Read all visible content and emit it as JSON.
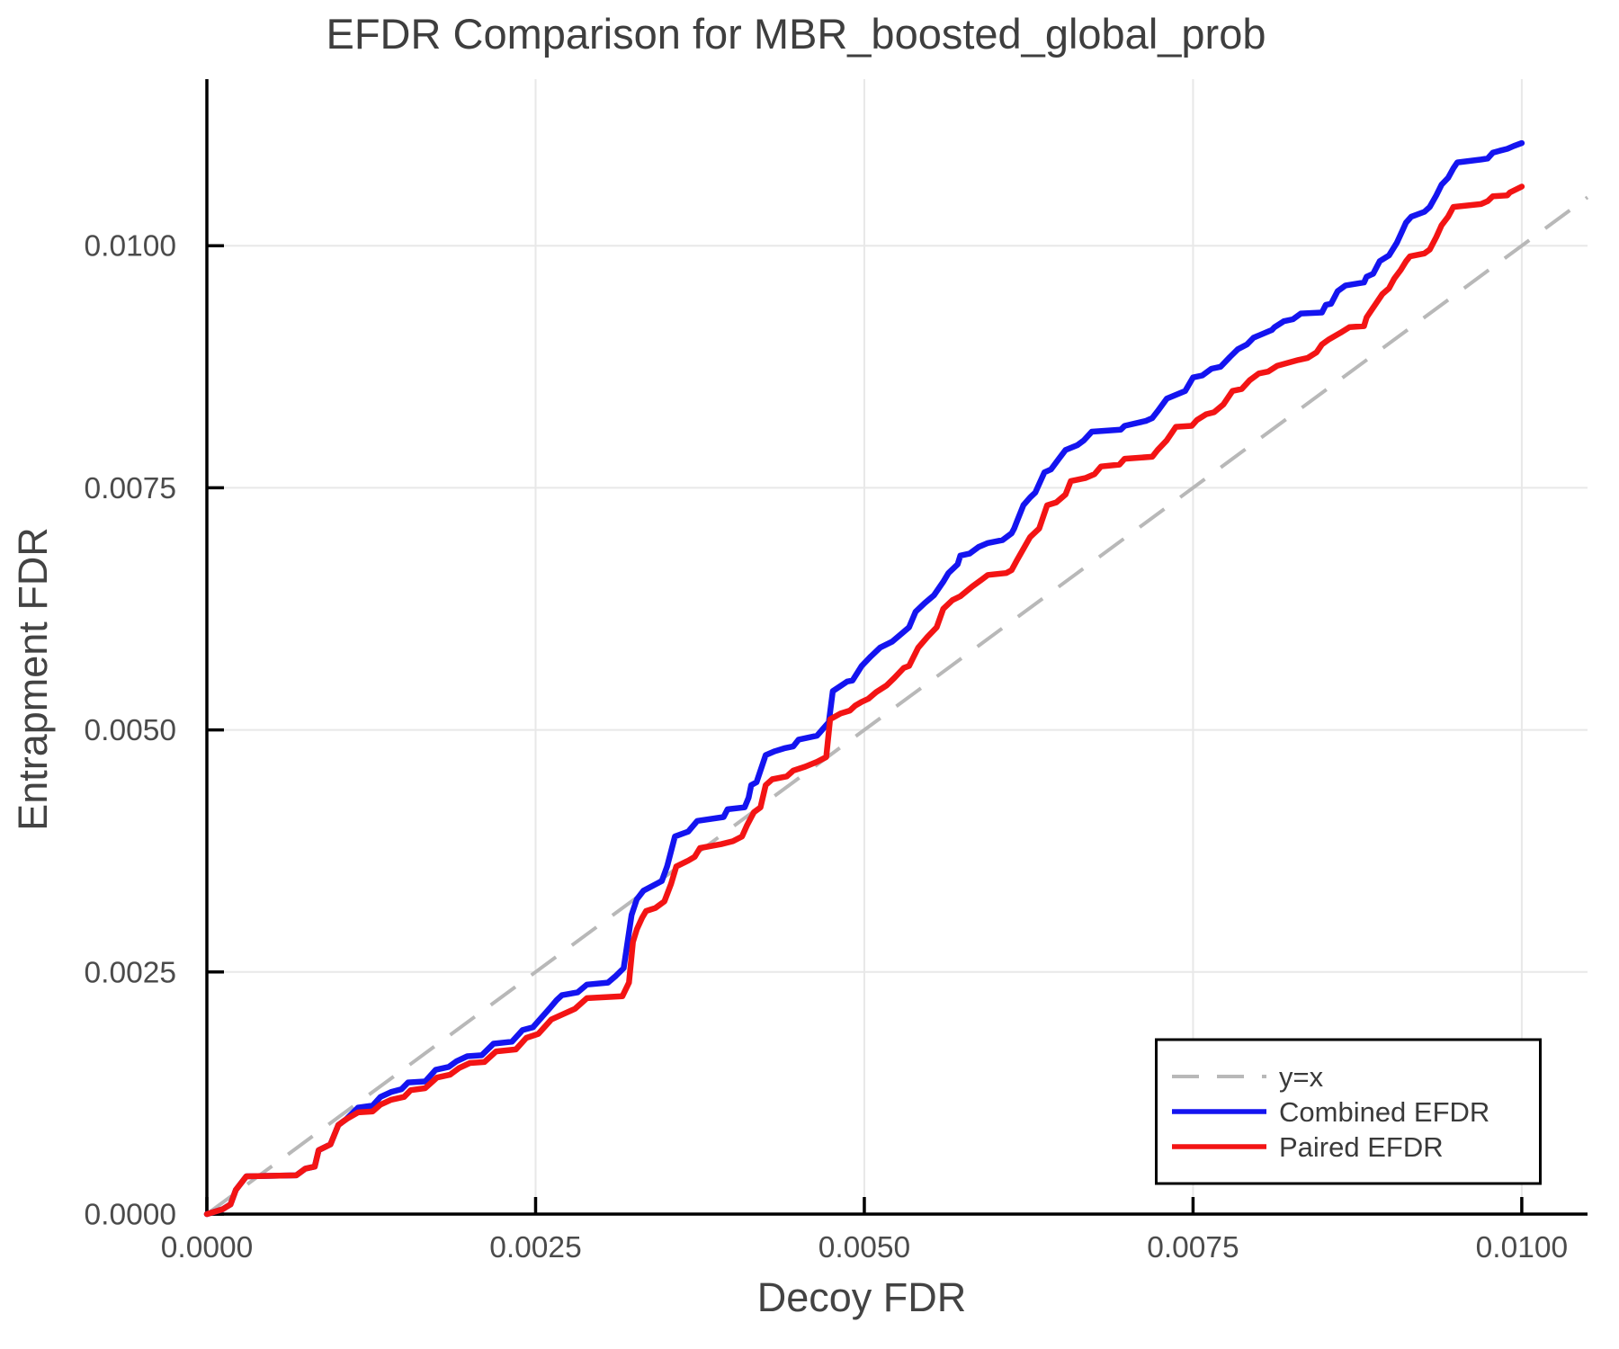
{
  "title": "EFDR Comparison for MBR_boosted_global_prob",
  "colors": {
    "combined": "#1414f0",
    "paired": "#f31414",
    "reference": "#b8b8b8",
    "grid": "#e8e8e8",
    "spine": "#000000",
    "title_text": "#3e3e3e",
    "tick_text": "#4b4b4b"
  },
  "chart_data": {
    "type": "line",
    "title": "EFDR Comparison for MBR_boosted_global_prob",
    "xlabel": "Decoy FDR",
    "ylabel": "Entrapment FDR",
    "xlim": [
      0,
      0.0105
    ],
    "ylim": [
      0,
      0.01172
    ],
    "grid": true,
    "x_ticks": {
      "values": [
        0,
        0.0025,
        0.005,
        0.0075,
        0.01
      ],
      "labels": [
        "0.0000",
        "0.0025",
        "0.0050",
        "0.0075",
        "0.0100"
      ]
    },
    "y_ticks": {
      "values": [
        0,
        0.0025,
        0.005,
        0.0075,
        0.01
      ],
      "labels": [
        "0.0000",
        "0.0025",
        "0.0050",
        "0.0075",
        "0.0100"
      ]
    },
    "reference_line": {
      "label": "y=x",
      "from": [
        0,
        0
      ],
      "to": [
        0.0105,
        0.0105
      ],
      "color": "#b8b8b8",
      "style": "dashed"
    },
    "legend": {
      "position": "lower-right",
      "entries": [
        {
          "label": "y=x",
          "color": "#b8b8b8",
          "style": "dashed"
        },
        {
          "label": "Combined EFDR",
          "color": "#1414f0",
          "style": "solid"
        },
        {
          "label": "Paired EFDR",
          "color": "#f31414",
          "style": "solid"
        }
      ]
    },
    "series": [
      {
        "name": "Combined EFDR",
        "color": "#1414f0",
        "points": [
          [
            0.0,
            0.0
          ],
          [
            0.00012,
            5e-05
          ],
          [
            0.00018,
            0.0001
          ],
          [
            0.00022,
            0.00025
          ],
          [
            0.0003,
            0.00039
          ],
          [
            0.00068,
            0.0004
          ],
          [
            0.00075,
            0.00047
          ],
          [
            0.00082,
            0.00049
          ],
          [
            0.00085,
            0.00066
          ],
          [
            0.00094,
            0.00072
          ],
          [
            0.001,
            0.00092
          ],
          [
            0.00106,
            0.00098
          ],
          [
            0.00115,
            0.0011
          ],
          [
            0.00126,
            0.00112
          ],
          [
            0.00132,
            0.00121
          ],
          [
            0.0014,
            0.00126
          ],
          [
            0.00148,
            0.00129
          ],
          [
            0.00153,
            0.00136
          ],
          [
            0.00166,
            0.00137
          ],
          [
            0.00174,
            0.00149
          ],
          [
            0.00184,
            0.00152
          ],
          [
            0.0019,
            0.00158
          ],
          [
            0.00198,
            0.00163
          ],
          [
            0.00209,
            0.00164
          ],
          [
            0.00218,
            0.00176
          ],
          [
            0.00232,
            0.00178
          ],
          [
            0.0024,
            0.0019
          ],
          [
            0.00248,
            0.00193
          ],
          [
            0.00261,
            0.00213
          ],
          [
            0.00266,
            0.00221
          ],
          [
            0.0027,
            0.00226
          ],
          [
            0.00282,
            0.00229
          ],
          [
            0.00289,
            0.00237
          ],
          [
            0.00305,
            0.00239
          ],
          [
            0.00311,
            0.00246
          ],
          [
            0.00317,
            0.00254
          ],
          [
            0.00323,
            0.00309
          ],
          [
            0.00327,
            0.00325
          ],
          [
            0.00332,
            0.00334
          ],
          [
            0.00339,
            0.00339
          ],
          [
            0.00346,
            0.00344
          ],
          [
            0.0035,
            0.00359
          ],
          [
            0.00356,
            0.0039
          ],
          [
            0.00366,
            0.00395
          ],
          [
            0.00373,
            0.00406
          ],
          [
            0.00393,
            0.0041
          ],
          [
            0.00396,
            0.00418
          ],
          [
            0.00409,
            0.0042
          ],
          [
            0.00412,
            0.0043
          ],
          [
            0.00414,
            0.00443
          ],
          [
            0.00418,
            0.00446
          ],
          [
            0.00425,
            0.00474
          ],
          [
            0.00432,
            0.00478
          ],
          [
            0.00439,
            0.00481
          ],
          [
            0.00446,
            0.00483
          ],
          [
            0.0045,
            0.0049
          ],
          [
            0.00464,
            0.00494
          ],
          [
            0.00466,
            0.00497
          ],
          [
            0.00473,
            0.00508
          ],
          [
            0.00476,
            0.0054
          ],
          [
            0.00487,
            0.0055
          ],
          [
            0.00491,
            0.00551
          ],
          [
            0.00498,
            0.00566
          ],
          [
            0.00505,
            0.00576
          ],
          [
            0.00512,
            0.00585
          ],
          [
            0.00521,
            0.00591
          ],
          [
            0.00528,
            0.00599
          ],
          [
            0.00534,
            0.00606
          ],
          [
            0.00539,
            0.00622
          ],
          [
            0.00546,
            0.00631
          ],
          [
            0.00553,
            0.00639
          ],
          [
            0.0056,
            0.00653
          ],
          [
            0.00564,
            0.00662
          ],
          [
            0.00571,
            0.00671
          ],
          [
            0.00573,
            0.0068
          ],
          [
            0.0058,
            0.00682
          ],
          [
            0.00587,
            0.00689
          ],
          [
            0.00594,
            0.00693
          ],
          [
            0.00605,
            0.00696
          ],
          [
            0.00612,
            0.00703
          ],
          [
            0.00614,
            0.00708
          ],
          [
            0.00616,
            0.00715
          ],
          [
            0.00621,
            0.00732
          ],
          [
            0.00626,
            0.0074
          ],
          [
            0.0063,
            0.00745
          ],
          [
            0.00637,
            0.00766
          ],
          [
            0.00642,
            0.00769
          ],
          [
            0.00648,
            0.0078
          ],
          [
            0.00653,
            0.00789
          ],
          [
            0.00662,
            0.00794
          ],
          [
            0.00667,
            0.00799
          ],
          [
            0.00673,
            0.00808
          ],
          [
            0.00695,
            0.0081
          ],
          [
            0.00698,
            0.00814
          ],
          [
            0.00714,
            0.00819
          ],
          [
            0.00719,
            0.00822
          ],
          [
            0.00723,
            0.00829
          ],
          [
            0.0073,
            0.00842
          ],
          [
            0.00744,
            0.0085
          ],
          [
            0.0075,
            0.00864
          ],
          [
            0.00757,
            0.00866
          ],
          [
            0.00764,
            0.00873
          ],
          [
            0.00771,
            0.00875
          ],
          [
            0.00778,
            0.00885
          ],
          [
            0.00784,
            0.00893
          ],
          [
            0.00791,
            0.00898
          ],
          [
            0.00796,
            0.00905
          ],
          [
            0.0081,
            0.00913
          ],
          [
            0.00812,
            0.00916
          ],
          [
            0.00819,
            0.00922
          ],
          [
            0.00826,
            0.00924
          ],
          [
            0.00832,
            0.0093
          ],
          [
            0.00848,
            0.00931
          ],
          [
            0.00851,
            0.00939
          ],
          [
            0.00855,
            0.0094
          ],
          [
            0.0086,
            0.00953
          ],
          [
            0.00866,
            0.00959
          ],
          [
            0.0088,
            0.00962
          ],
          [
            0.00882,
            0.00968
          ],
          [
            0.00887,
            0.00971
          ],
          [
            0.00892,
            0.00984
          ],
          [
            0.00899,
            0.0099
          ],
          [
            0.00905,
            0.01003
          ],
          [
            0.00909,
            0.01015
          ],
          [
            0.00912,
            0.01024
          ],
          [
            0.00916,
            0.0103
          ],
          [
            0.00926,
            0.01035
          ],
          [
            0.0093,
            0.0104
          ],
          [
            0.00935,
            0.01052
          ],
          [
            0.00939,
            0.01063
          ],
          [
            0.00944,
            0.0107
          ],
          [
            0.00948,
            0.0108
          ],
          [
            0.00951,
            0.01086
          ],
          [
            0.00969,
            0.01089
          ],
          [
            0.00974,
            0.0109
          ],
          [
            0.00978,
            0.01096
          ],
          [
            0.00983,
            0.01098
          ],
          [
            0.00989,
            0.011
          ],
          [
            0.00994,
            0.01103
          ],
          [
            0.01,
            0.01106
          ]
        ]
      },
      {
        "name": "Paired EFDR",
        "color": "#f31414",
        "points": [
          [
            0.0,
            0.0
          ],
          [
            0.00012,
            5e-05
          ],
          [
            0.00018,
            0.0001
          ],
          [
            0.00022,
            0.00025
          ],
          [
            0.0003,
            0.00039
          ],
          [
            0.00068,
            0.0004
          ],
          [
            0.00075,
            0.00047
          ],
          [
            0.00082,
            0.00049
          ],
          [
            0.00085,
            0.00066
          ],
          [
            0.00094,
            0.00072
          ],
          [
            0.001,
            0.00092
          ],
          [
            0.00106,
            0.00098
          ],
          [
            0.00115,
            0.00105
          ],
          [
            0.00126,
            0.00106
          ],
          [
            0.00132,
            0.00113
          ],
          [
            0.0014,
            0.00118
          ],
          [
            0.0015,
            0.00121
          ],
          [
            0.00155,
            0.00128
          ],
          [
            0.00166,
            0.0013
          ],
          [
            0.00175,
            0.00141
          ],
          [
            0.00185,
            0.00144
          ],
          [
            0.00192,
            0.00151
          ],
          [
            0.002,
            0.00156
          ],
          [
            0.00211,
            0.00157
          ],
          [
            0.0022,
            0.00168
          ],
          [
            0.00235,
            0.0017
          ],
          [
            0.00243,
            0.00182
          ],
          [
            0.00252,
            0.00186
          ],
          [
            0.00262,
            0.00201
          ],
          [
            0.0028,
            0.00212
          ],
          [
            0.00289,
            0.00223
          ],
          [
            0.00316,
            0.00225
          ],
          [
            0.00321,
            0.00239
          ],
          [
            0.00324,
            0.00281
          ],
          [
            0.00327,
            0.00294
          ],
          [
            0.00331,
            0.00306
          ],
          [
            0.00334,
            0.00313
          ],
          [
            0.00341,
            0.00316
          ],
          [
            0.00348,
            0.00323
          ],
          [
            0.00353,
            0.00341
          ],
          [
            0.00357,
            0.00359
          ],
          [
            0.00366,
            0.00365
          ],
          [
            0.00371,
            0.00369
          ],
          [
            0.00375,
            0.00378
          ],
          [
            0.00391,
            0.00382
          ],
          [
            0.004,
            0.00385
          ],
          [
            0.00407,
            0.0039
          ],
          [
            0.00411,
            0.00402
          ],
          [
            0.00416,
            0.00415
          ],
          [
            0.00421,
            0.0042
          ],
          [
            0.00425,
            0.00443
          ],
          [
            0.0043,
            0.00449
          ],
          [
            0.00441,
            0.00452
          ],
          [
            0.00446,
            0.00458
          ],
          [
            0.00455,
            0.00462
          ],
          [
            0.00464,
            0.00467
          ],
          [
            0.00471,
            0.00472
          ],
          [
            0.00474,
            0.00511
          ],
          [
            0.00482,
            0.00517
          ],
          [
            0.00489,
            0.0052
          ],
          [
            0.00493,
            0.00525
          ],
          [
            0.00498,
            0.00529
          ],
          [
            0.00503,
            0.00532
          ],
          [
            0.00509,
            0.00539
          ],
          [
            0.00517,
            0.00546
          ],
          [
            0.00523,
            0.00554
          ],
          [
            0.0053,
            0.00564
          ],
          [
            0.00534,
            0.00566
          ],
          [
            0.00541,
            0.00585
          ],
          [
            0.00548,
            0.00596
          ],
          [
            0.00555,
            0.00606
          ],
          [
            0.0056,
            0.00625
          ],
          [
            0.00567,
            0.00634
          ],
          [
            0.00573,
            0.00638
          ],
          [
            0.00582,
            0.00648
          ],
          [
            0.00589,
            0.00655
          ],
          [
            0.00594,
            0.0066
          ],
          [
            0.00608,
            0.00662
          ],
          [
            0.00612,
            0.00665
          ],
          [
            0.00616,
            0.00675
          ],
          [
            0.00626,
            0.00699
          ],
          [
            0.00633,
            0.00708
          ],
          [
            0.00639,
            0.00732
          ],
          [
            0.00646,
            0.00735
          ],
          [
            0.00653,
            0.00743
          ],
          [
            0.00657,
            0.00757
          ],
          [
            0.00668,
            0.0076
          ],
          [
            0.00675,
            0.00764
          ],
          [
            0.0068,
            0.00772
          ],
          [
            0.00694,
            0.00774
          ],
          [
            0.00698,
            0.0078
          ],
          [
            0.00719,
            0.00782
          ],
          [
            0.00723,
            0.00789
          ],
          [
            0.0073,
            0.00799
          ],
          [
            0.00737,
            0.00813
          ],
          [
            0.00749,
            0.00814
          ],
          [
            0.00753,
            0.0082
          ],
          [
            0.0076,
            0.00826
          ],
          [
            0.00766,
            0.00828
          ],
          [
            0.00773,
            0.00836
          ],
          [
            0.0078,
            0.0085
          ],
          [
            0.00787,
            0.00852
          ],
          [
            0.00793,
            0.00861
          ],
          [
            0.008,
            0.00868
          ],
          [
            0.00807,
            0.0087
          ],
          [
            0.00814,
            0.00876
          ],
          [
            0.0083,
            0.00882
          ],
          [
            0.00837,
            0.00884
          ],
          [
            0.00844,
            0.0089
          ],
          [
            0.00848,
            0.00898
          ],
          [
            0.00853,
            0.00903
          ],
          [
            0.00862,
            0.0091
          ],
          [
            0.00869,
            0.00916
          ],
          [
            0.0088,
            0.00917
          ],
          [
            0.00882,
            0.00926
          ],
          [
            0.00889,
            0.0094
          ],
          [
            0.00894,
            0.0095
          ],
          [
            0.00899,
            0.00956
          ],
          [
            0.00903,
            0.00966
          ],
          [
            0.00908,
            0.00975
          ],
          [
            0.00912,
            0.00984
          ],
          [
            0.00915,
            0.00989
          ],
          [
            0.00926,
            0.00992
          ],
          [
            0.0093,
            0.00996
          ],
          [
            0.00935,
            0.01009
          ],
          [
            0.00939,
            0.01021
          ],
          [
            0.00944,
            0.0103
          ],
          [
            0.00948,
            0.0104
          ],
          [
            0.00969,
            0.01043
          ],
          [
            0.00974,
            0.01046
          ],
          [
            0.00978,
            0.01051
          ],
          [
            0.00989,
            0.01052
          ],
          [
            0.00991,
            0.01055
          ],
          [
            0.01,
            0.01061
          ]
        ]
      }
    ]
  }
}
